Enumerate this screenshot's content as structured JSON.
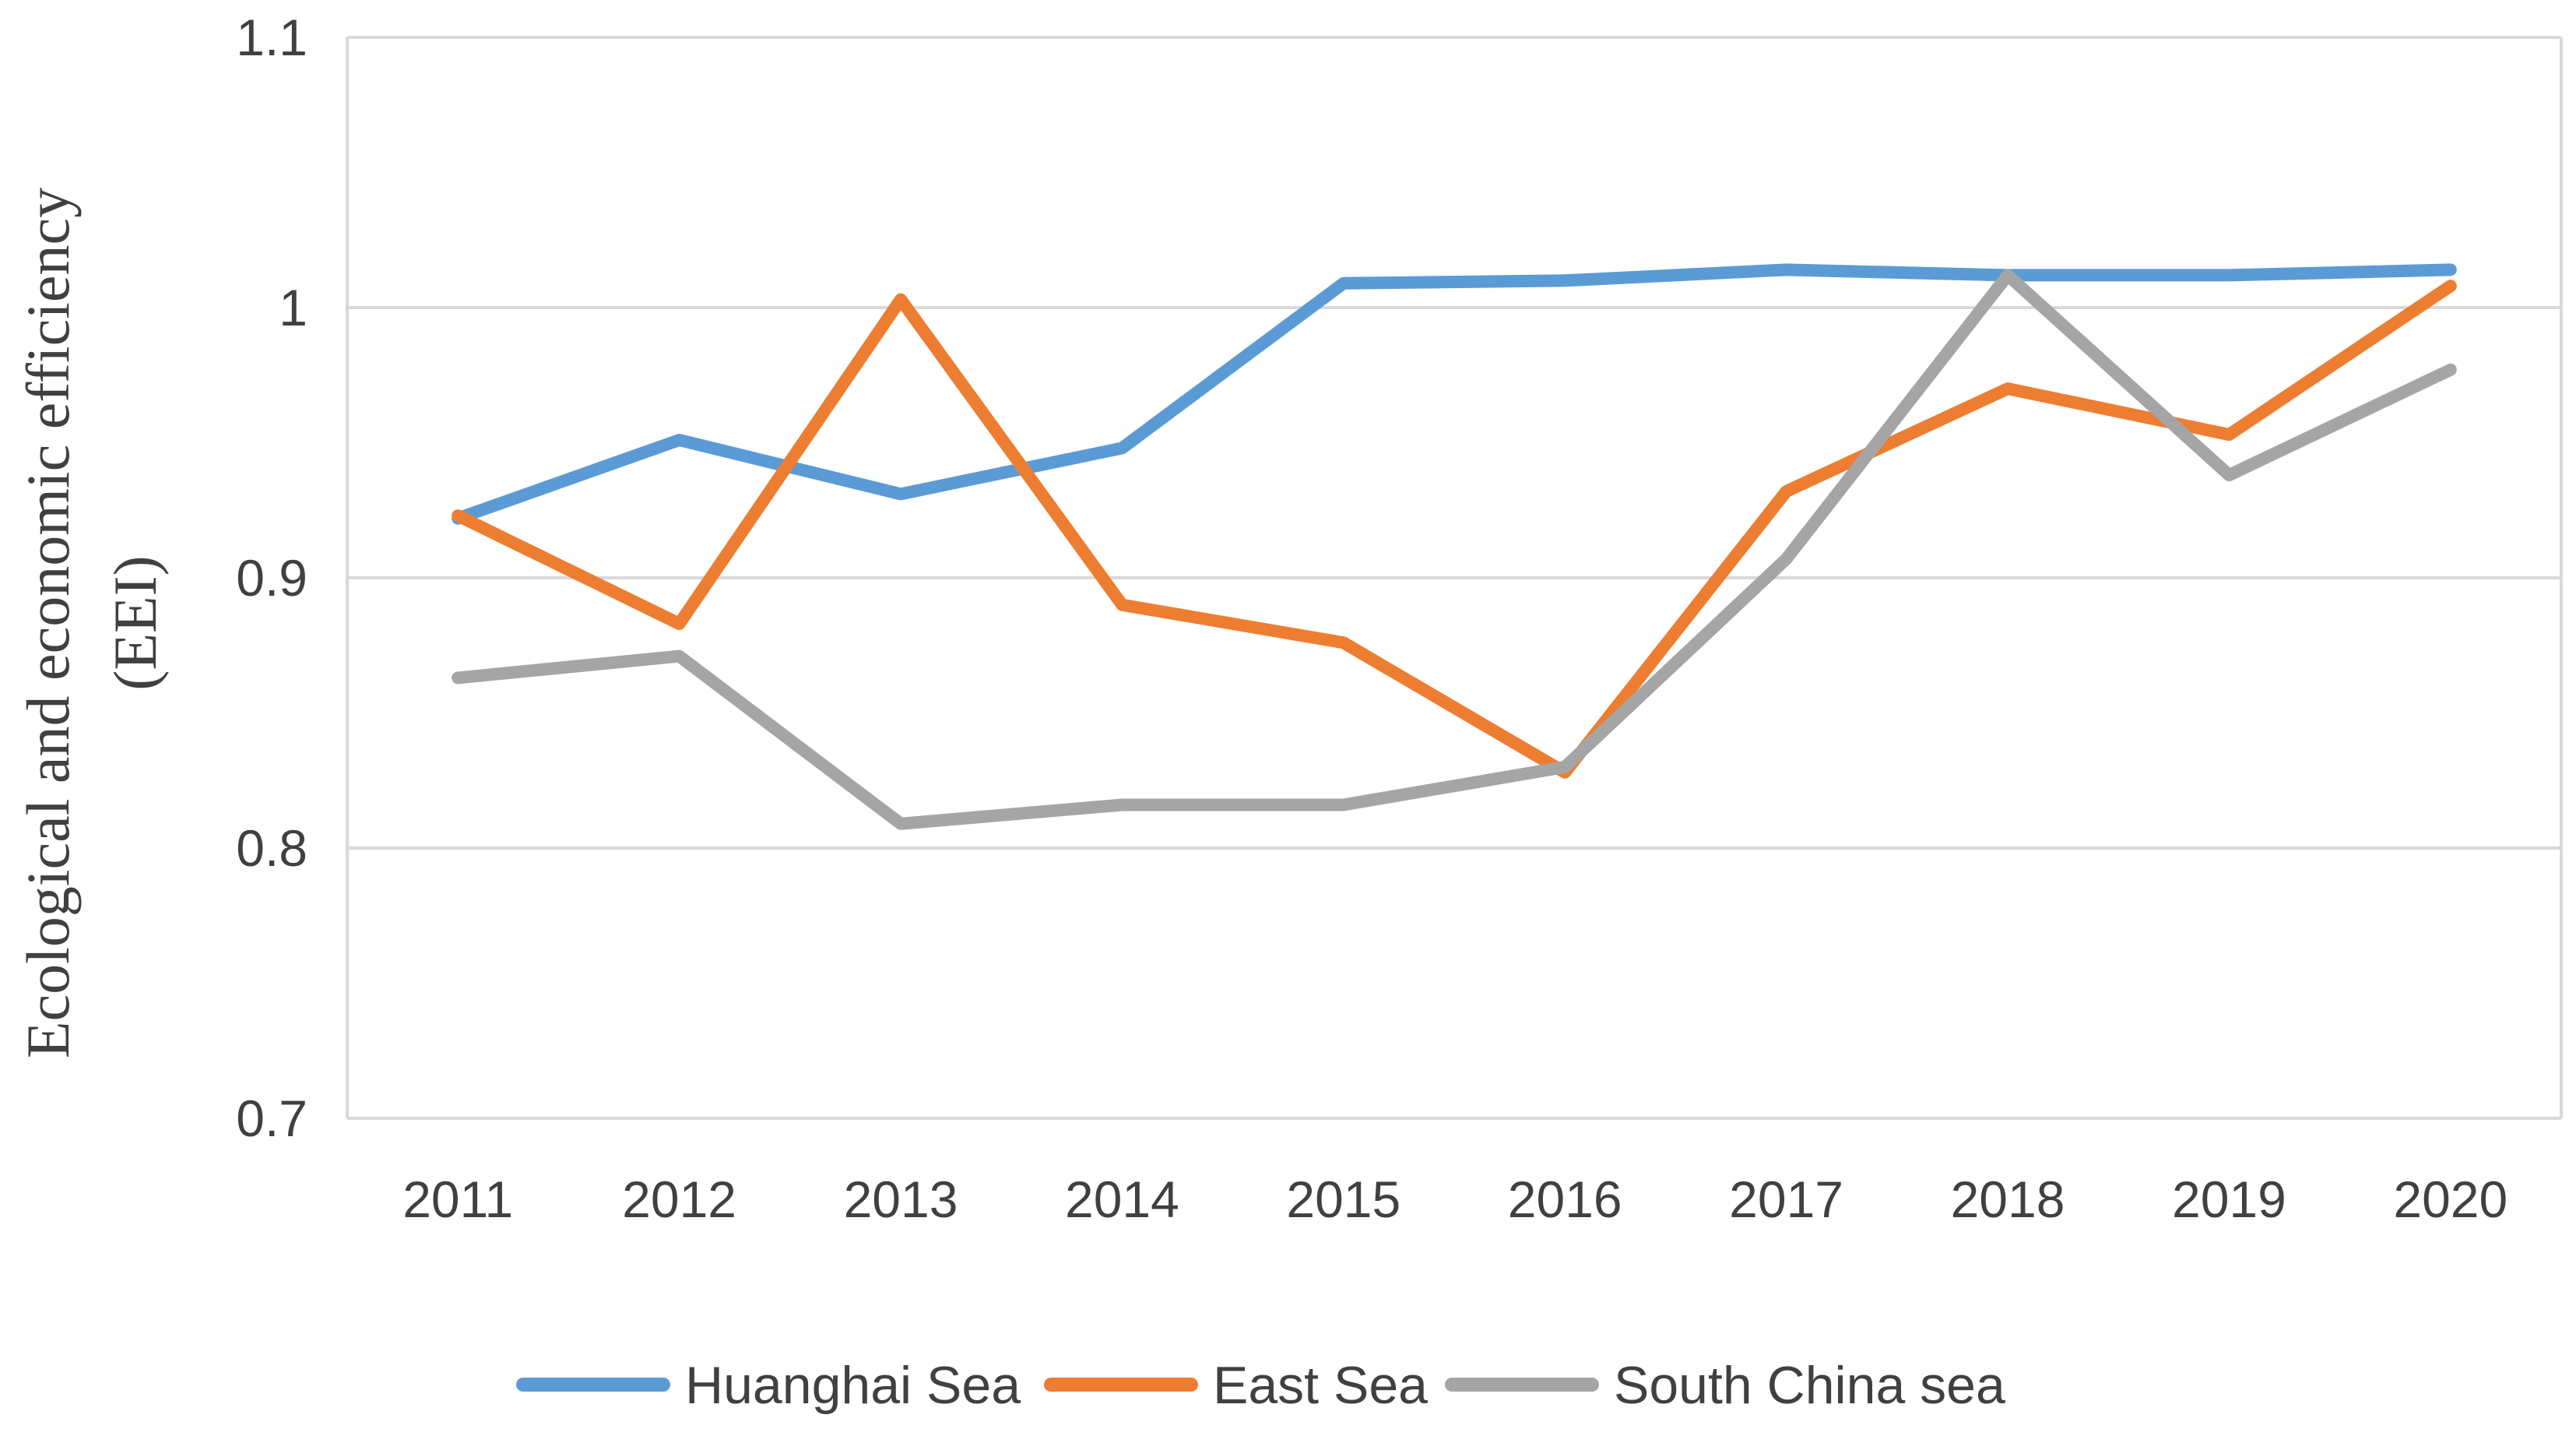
{
  "chart_data": {
    "type": "line",
    "categories": [
      "2011",
      "2012",
      "2013",
      "2014",
      "2015",
      "2016",
      "2017",
      "2018",
      "2019",
      "2020"
    ],
    "series": [
      {
        "name": "Huanghai Sea",
        "color": "#5B9BD5",
        "values": [
          0.922,
          0.951,
          0.931,
          0.948,
          1.009,
          1.01,
          1.014,
          1.012,
          1.012,
          1.014
        ]
      },
      {
        "name": "East Sea",
        "color": "#ED7D31",
        "values": [
          0.923,
          0.883,
          1.003,
          0.89,
          0.876,
          0.828,
          0.932,
          0.97,
          0.953,
          1.008
        ]
      },
      {
        "name": "South China sea",
        "color": "#A5A5A5",
        "values": [
          0.863,
          0.871,
          0.809,
          0.816,
          0.816,
          0.83,
          0.907,
          1.012,
          0.938,
          0.977
        ]
      }
    ],
    "y_ticks": [
      "0.7",
      "0.8",
      "0.9",
      "1",
      "1.1"
    ],
    "y_tick_values": [
      0.7,
      0.8,
      0.9,
      1.0,
      1.1
    ],
    "ylim": [
      0.7,
      1.1
    ],
    "ylabel_line1": "Ecological and  economic efficiency",
    "ylabel_line2": "(EEI)",
    "xlabel": "",
    "grid": true,
    "legend_position": "bottom"
  }
}
